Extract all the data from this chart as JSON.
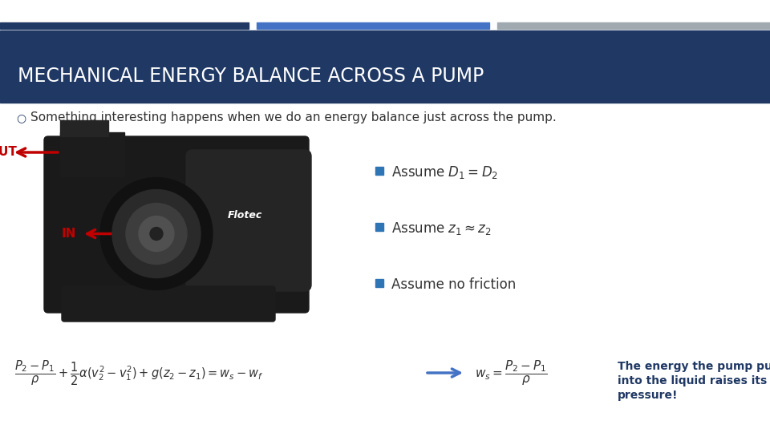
{
  "title": "MECHANICAL ENERGY BALANCE ACROSS A PUMP",
  "title_bg_color": "#1F3864",
  "title_text_color": "#FFFFFF",
  "bar1_color": "#1F3864",
  "bar2_color": "#4472C4",
  "bar3_color": "#A0A8B0",
  "body_bg_color": "#FFFFFF",
  "bullet_text": "Something interesting happens when we do an energy balance just across the pump.",
  "bullet_color": "#1F3864",
  "assume1": "Assume $D_1 = D_2$",
  "assume2": "Assume $z_1 \\approx z_2$",
  "assume3": "Assume no friction",
  "assume_bullet_color": "#2E75B6",
  "out_label": "OUT",
  "in_label": "IN",
  "label_color": "#C00000",
  "formula_full": "$\\dfrac{P_2 - P_1}{\\rho} + \\dfrac{1}{2}\\alpha(v_2^2 - v_1^2) + g(z_2 - z_1) = w_s - w_f$",
  "formula_simple": "$w_s = \\dfrac{P_2 - P_1}{\\rho}$",
  "note_line1": "The energy the pump puts",
  "note_line2": "into the liquid raises its",
  "note_line3": "pressure!",
  "note_color": "#1F3864",
  "arrow_color": "#4472C4"
}
